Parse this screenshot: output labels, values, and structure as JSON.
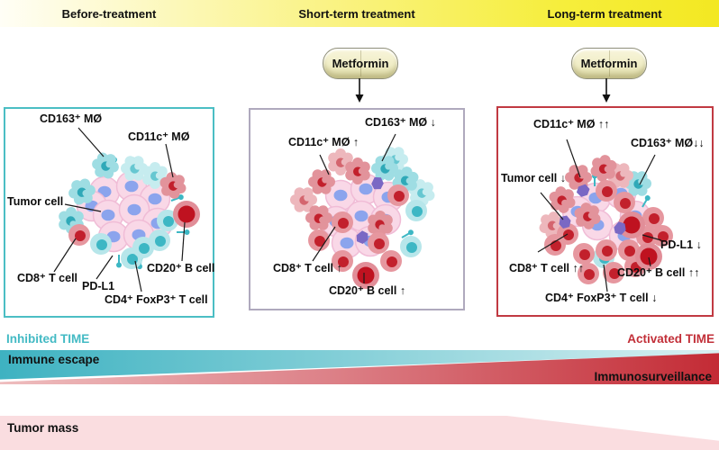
{
  "header": {
    "before": "Before-treatment",
    "short": "Short-term treatment",
    "long": "Long-term treatment"
  },
  "metformin_label": "Metformin",
  "panels": {
    "before": {
      "labels": {
        "cd163": "CD163⁺ MØ",
        "cd11c": "CD11c⁺ MØ",
        "tumor": "Tumor cell",
        "cd8": "CD8⁺ T cell",
        "pdl1": "PD-L1",
        "cd20": "CD20⁺ B cell",
        "cd4": "CD4⁺ FoxP3⁺ T cell"
      }
    },
    "short": {
      "labels": {
        "cd163": "CD163⁺ MØ ↓",
        "cd11c": "CD11c⁺ MØ ↑",
        "cd8": "CD8⁺ T cell ↑",
        "cd20": "CD20⁺ B cell ↑"
      }
    },
    "long": {
      "labels": {
        "cd11c": "CD11c⁺ MØ ↑↑",
        "cd163": "CD163⁺ MØ↓↓",
        "tumor": "Tumor cell ↓",
        "cd8": "CD8⁺ T cell ↑↑",
        "pdl1": "PD-L1 ↓",
        "cd20": "CD20⁺ B cell ↑↑",
        "cd4": "CD4⁺ FoxP3⁺ T cell ↓"
      }
    }
  },
  "legend": {
    "inhibited": "Inhibited TIME",
    "activated": "Activated TIME",
    "immune_escape": "Immune escape",
    "immunosurveillance": "Immunosurveillance",
    "tumor_mass": "Tumor mass"
  },
  "colors": {
    "banner_yellow": "#f3e822",
    "panel_before_border": "#4bbec4",
    "panel_short_border": "#afa9bd",
    "panel_long_border": "#c13a42",
    "inhibited_text": "#43bac4",
    "activated_text": "#c22f38",
    "teal_wedge_start": "#3eb2c1",
    "red_wedge_end": "#c32b35",
    "tumor_mass_fill": "#fadde0"
  }
}
